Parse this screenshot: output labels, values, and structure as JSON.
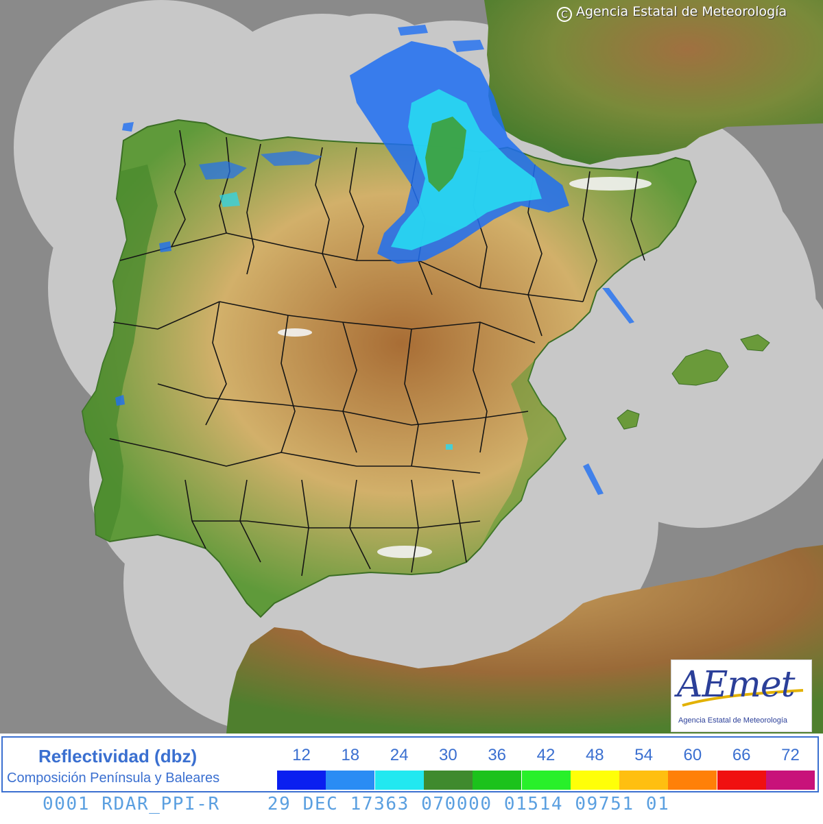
{
  "map": {
    "copyright": "Agencia Estatal de Meteorología",
    "copyright_icon": "copyright-icon",
    "colors": {
      "outside_coverage": "#888888",
      "radar_coverage": "#c7c7c7",
      "land_low": "#3f7d2a",
      "land_mid": "#d7b46a",
      "land_high": "#a0622e",
      "snow": "#f2f2f2",
      "border": "#111111"
    }
  },
  "logo": {
    "brand": "AEmet",
    "subtitle": "Agencia Estatal de Meteorología"
  },
  "legend": {
    "title": "Reflectividad (dbz)",
    "subtitle": "Composición Península y Baleares",
    "levels": [
      {
        "value": "12",
        "color": "#0a1ff0"
      },
      {
        "value": "18",
        "color": "#2a8cf4"
      },
      {
        "value": "24",
        "color": "#22e8f0"
      },
      {
        "value": "30",
        "color": "#3f8a2e"
      },
      {
        "value": "36",
        "color": "#1cc21c"
      },
      {
        "value": "42",
        "color": "#28f02a"
      },
      {
        "value": "48",
        "color": "#ffff08"
      },
      {
        "value": "54",
        "color": "#ffbf10"
      },
      {
        "value": "60",
        "color": "#ff8008"
      },
      {
        "value": "66",
        "color": "#f01010"
      },
      {
        "value": "72",
        "color": "#c8127a"
      }
    ]
  },
  "footer": {
    "code": "0001 RDAR_PPI-R    29 DEC 17363 070000 01514 09751 01"
  }
}
